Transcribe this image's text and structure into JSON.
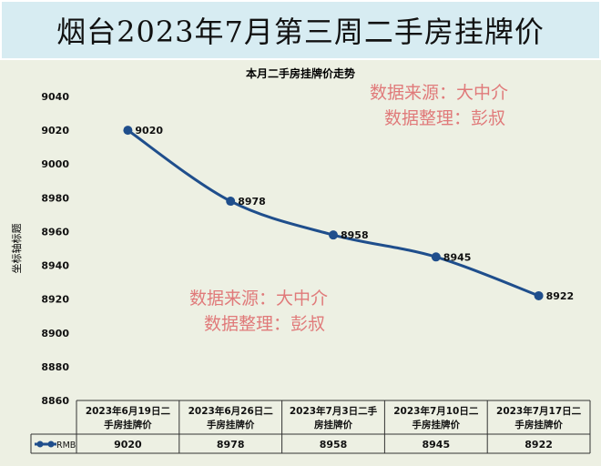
{
  "header": {
    "title": "烟台2023年7月第三周二手房挂牌价"
  },
  "watermarks": [
    {
      "line1": "数据来源：大中介",
      "line2": "数据整理：彭叔"
    },
    {
      "line1": "数据来源：大中介",
      "line2": "数据整理：彭叔"
    }
  ],
  "chart_data": {
    "type": "line",
    "title": "本月二手房挂牌价走势",
    "ylabel": "坐标轴标题",
    "xlabel": "",
    "ylim": [
      8860,
      9040
    ],
    "yticks": [
      8860,
      8880,
      8900,
      8920,
      8940,
      8960,
      8980,
      9000,
      9020,
      9040
    ],
    "categories": [
      "2023年6月19日二手房挂牌价",
      "2023年6月26日二手房挂牌价",
      "2023年7月3日二手房挂牌价",
      "2023年7月10日二手房挂牌价",
      "2023年7月17日二手房挂牌价"
    ],
    "category_lines": [
      [
        "2023年6月19日二",
        "手房挂牌价"
      ],
      [
        "2023年6月26日二",
        "手房挂牌价"
      ],
      [
        "2023年7月3日二手",
        "房挂牌价"
      ],
      [
        "2023年7月10日二",
        "手房挂牌价"
      ],
      [
        "2023年7月17日二",
        "手房挂牌价"
      ]
    ],
    "series": [
      {
        "name": "RMB",
        "values": [
          9020,
          8978,
          8958,
          8945,
          8922
        ],
        "color": "#1f4e8c"
      }
    ],
    "data_labels": [
      "9020",
      "8978",
      "8958",
      "8945",
      "8922"
    ],
    "smooth": true,
    "grid": false,
    "legend": "data-table-left"
  }
}
